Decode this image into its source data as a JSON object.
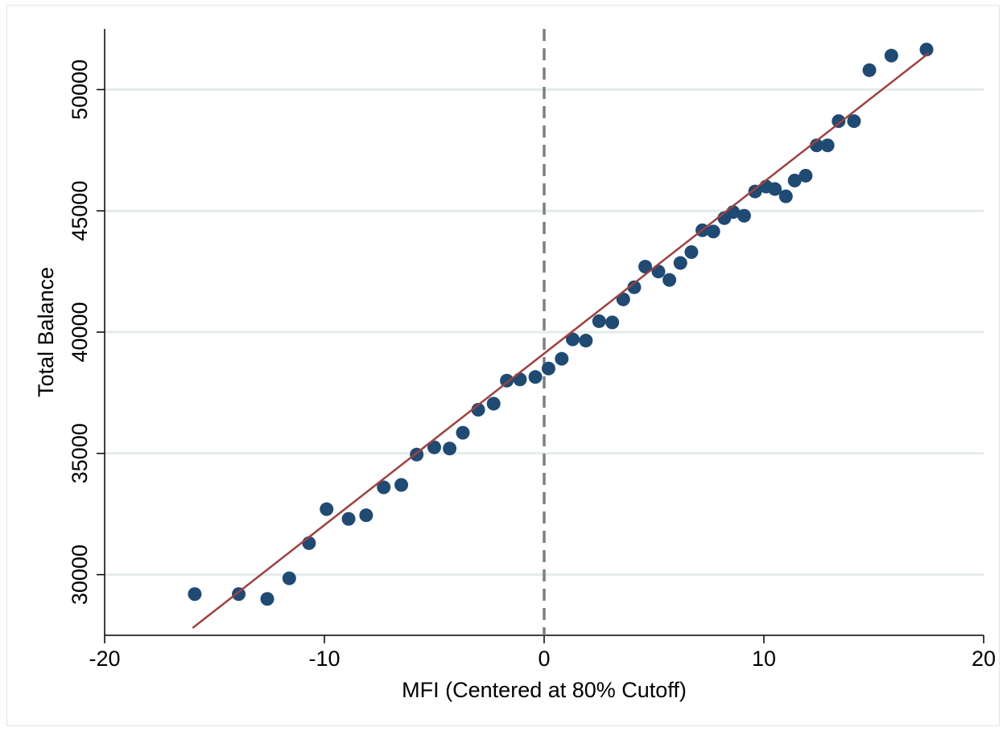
{
  "chart_data": {
    "type": "scatter",
    "title": "",
    "xlabel": "MFI (Centered at 80% Cutoff)",
    "ylabel": "Total Balance",
    "xlim": [
      -20,
      20
    ],
    "ylim": [
      27500,
      52500
    ],
    "x_ticks": [
      -20,
      -10,
      0,
      10,
      20
    ],
    "x_tick_labels": [
      "-20",
      "-10",
      "0",
      "10",
      "20"
    ],
    "y_ticks": [
      30000,
      35000,
      40000,
      45000,
      50000
    ],
    "y_tick_labels": [
      "30000",
      "35000",
      "40000",
      "45000",
      "50000"
    ],
    "grid": "horizontal",
    "cutoff_line": {
      "x": 0,
      "style": "dashed",
      "color": "#7f7f7f"
    },
    "fit_line": {
      "x": [
        -16,
        17.5
      ],
      "y": [
        27800,
        51500
      ],
      "color": "#a0403f"
    },
    "marker_color": "#1f4a73",
    "points": [
      {
        "x": -15.9,
        "y": 29200
      },
      {
        "x": -13.9,
        "y": 29200
      },
      {
        "x": -12.6,
        "y": 29000
      },
      {
        "x": -11.6,
        "y": 29850
      },
      {
        "x": -10.7,
        "y": 31300
      },
      {
        "x": -9.9,
        "y": 32700
      },
      {
        "x": -8.9,
        "y": 32300
      },
      {
        "x": -8.1,
        "y": 32450
      },
      {
        "x": -7.3,
        "y": 33600
      },
      {
        "x": -6.5,
        "y": 33700
      },
      {
        "x": -5.8,
        "y": 34950
      },
      {
        "x": -5.0,
        "y": 35250
      },
      {
        "x": -4.3,
        "y": 35200
      },
      {
        "x": -3.7,
        "y": 35850
      },
      {
        "x": -3.0,
        "y": 36800
      },
      {
        "x": -2.3,
        "y": 37050
      },
      {
        "x": -1.7,
        "y": 38000
      },
      {
        "x": -1.1,
        "y": 38050
      },
      {
        "x": -0.4,
        "y": 38150
      },
      {
        "x": 0.2,
        "y": 38500
      },
      {
        "x": 0.8,
        "y": 38900
      },
      {
        "x": 1.3,
        "y": 39700
      },
      {
        "x": 1.9,
        "y": 39650
      },
      {
        "x": 2.5,
        "y": 40450
      },
      {
        "x": 3.1,
        "y": 40400
      },
      {
        "x": 3.6,
        "y": 41350
      },
      {
        "x": 4.1,
        "y": 41850
      },
      {
        "x": 4.6,
        "y": 42700
      },
      {
        "x": 5.2,
        "y": 42500
      },
      {
        "x": 5.7,
        "y": 42150
      },
      {
        "x": 6.2,
        "y": 42850
      },
      {
        "x": 6.7,
        "y": 43300
      },
      {
        "x": 7.2,
        "y": 44200
      },
      {
        "x": 7.7,
        "y": 44150
      },
      {
        "x": 8.2,
        "y": 44700
      },
      {
        "x": 8.6,
        "y": 44950
      },
      {
        "x": 9.1,
        "y": 44800
      },
      {
        "x": 9.6,
        "y": 45800
      },
      {
        "x": 10.1,
        "y": 46000
      },
      {
        "x": 10.5,
        "y": 45900
      },
      {
        "x": 11.0,
        "y": 45600
      },
      {
        "x": 11.4,
        "y": 46250
      },
      {
        "x": 11.9,
        "y": 46450
      },
      {
        "x": 12.4,
        "y": 47700
      },
      {
        "x": 12.9,
        "y": 47700
      },
      {
        "x": 13.4,
        "y": 48700
      },
      {
        "x": 14.1,
        "y": 48700
      },
      {
        "x": 14.8,
        "y": 50800
      },
      {
        "x": 15.8,
        "y": 51400
      },
      {
        "x": 17.4,
        "y": 51650
      }
    ]
  }
}
